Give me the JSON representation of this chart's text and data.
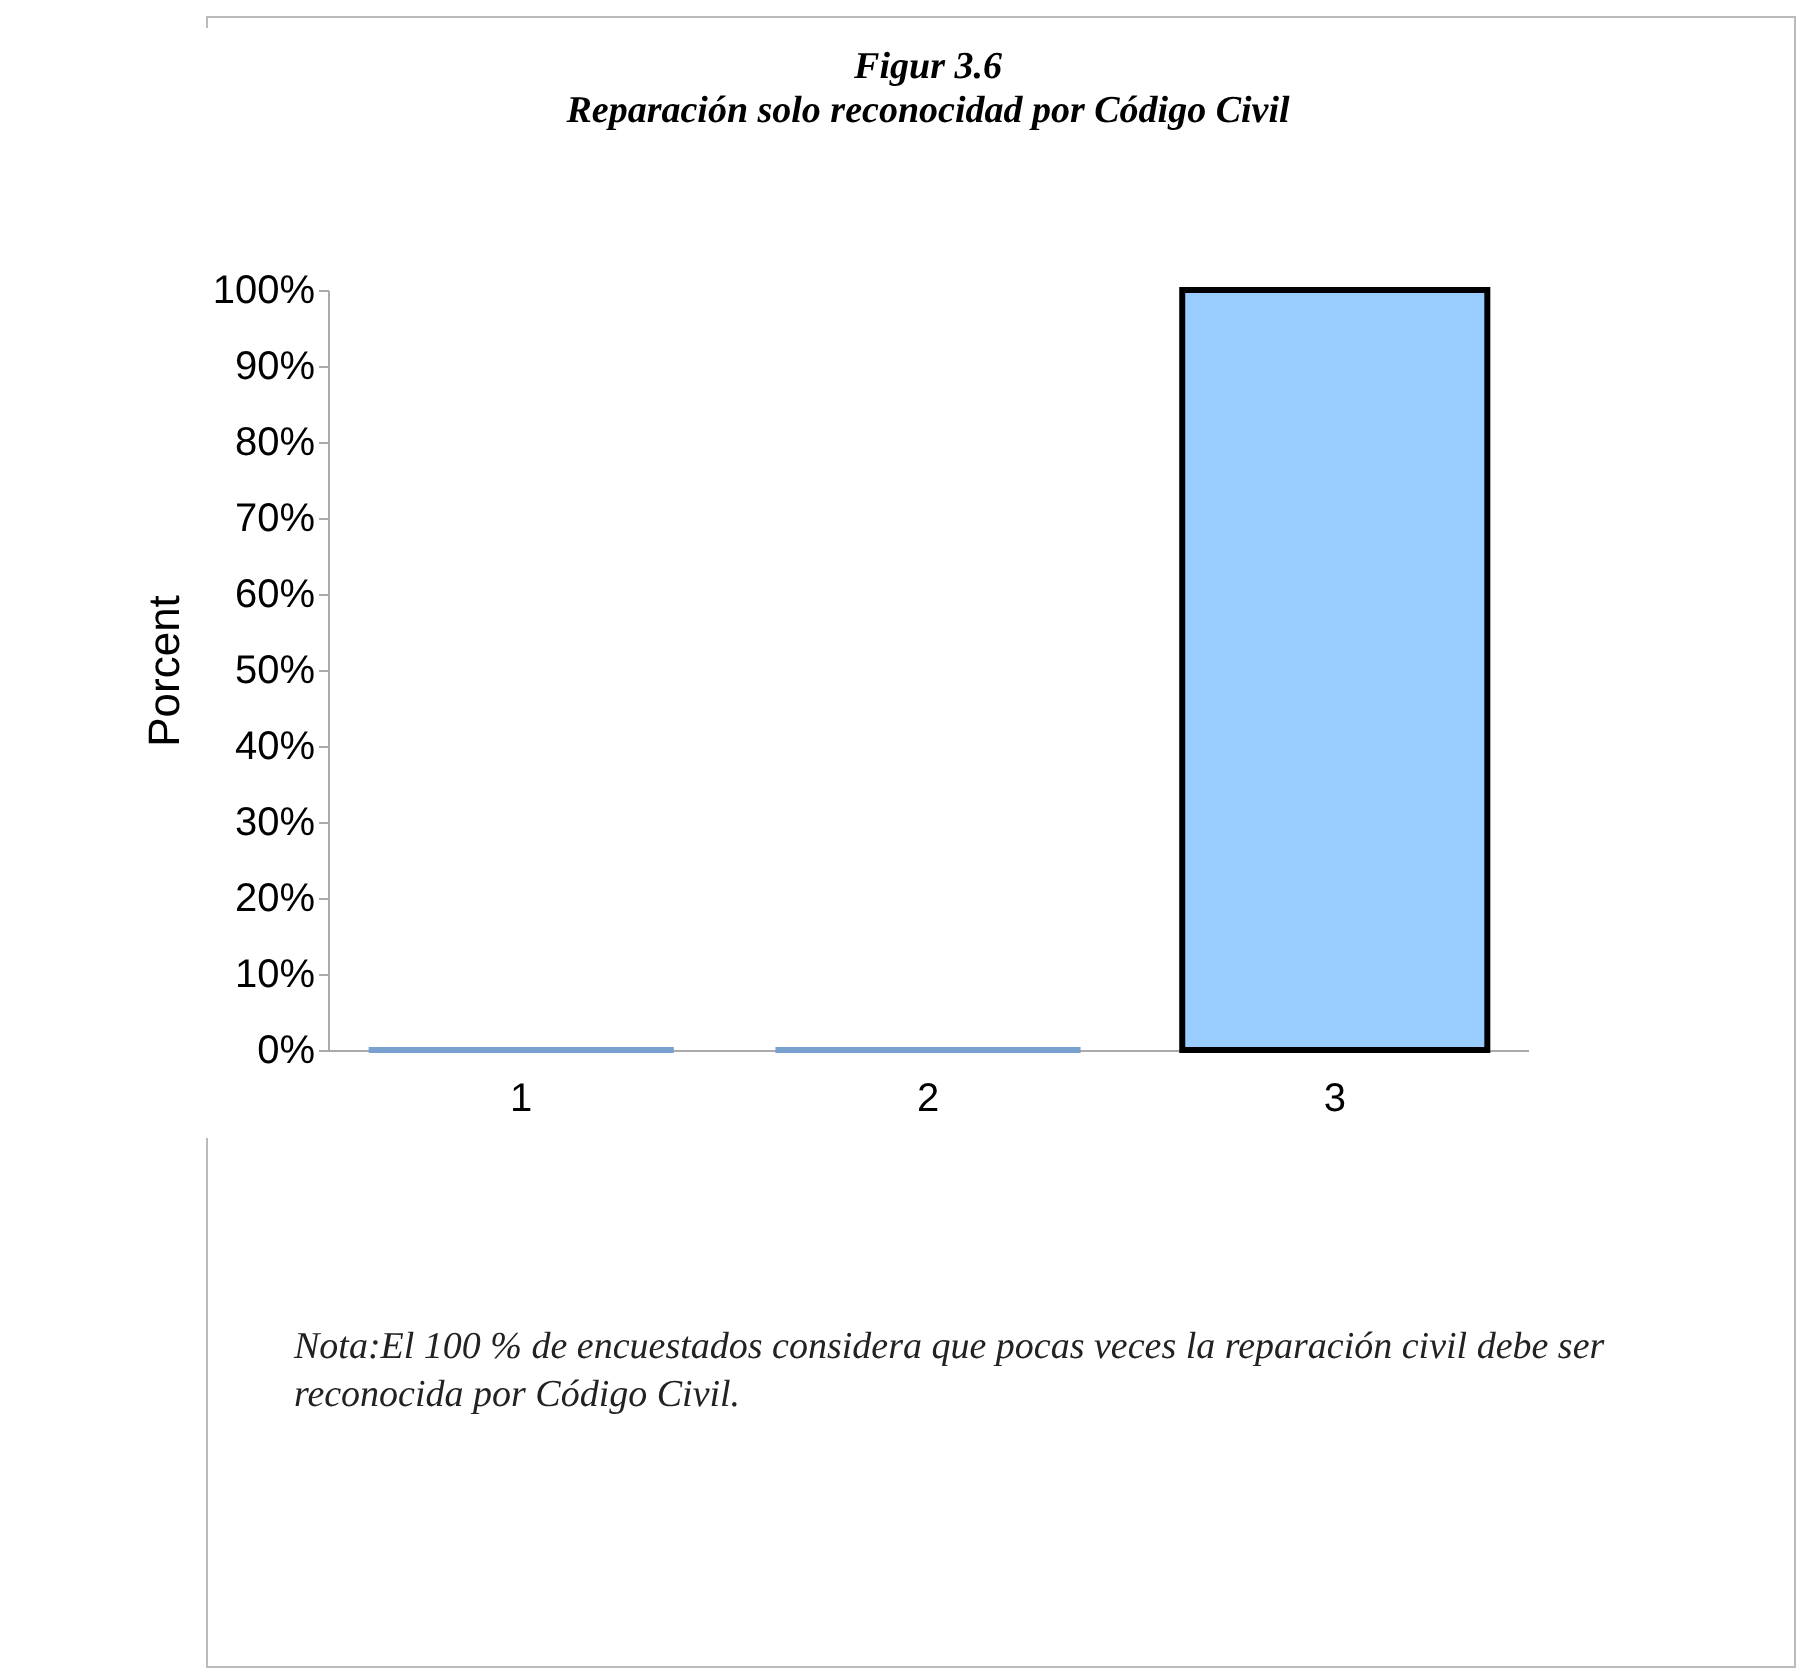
{
  "chart_data": {
    "type": "bar",
    "title": "Figur 3.6",
    "subtitle": "Reparación solo reconocidad por Código Civil",
    "ylabel": "Porcent",
    "categories": [
      "1",
      "2",
      "3"
    ],
    "values": [
      0,
      0,
      100
    ],
    "colors": [
      "#7aa0cf",
      "#7aa0cf",
      "#99ccff"
    ],
    "ylim": [
      0,
      100
    ],
    "yticks": [
      {
        "value": 0,
        "label": "0%"
      },
      {
        "value": 10,
        "label": "10%"
      },
      {
        "value": 20,
        "label": "20%"
      },
      {
        "value": 30,
        "label": "30%"
      },
      {
        "value": 40,
        "label": "40%"
      },
      {
        "value": 50,
        "label": "50%"
      },
      {
        "value": 60,
        "label": "60%"
      },
      {
        "value": 70,
        "label": "70%"
      },
      {
        "value": 80,
        "label": "80%"
      },
      {
        "value": 90,
        "label": "90%"
      },
      {
        "value": 100,
        "label": "100%"
      }
    ],
    "annotations": [
      "Nota:El 100 % de encuestados considera que pocas veces  la reparación civil debe ser reconocida por Código Civil."
    ]
  }
}
